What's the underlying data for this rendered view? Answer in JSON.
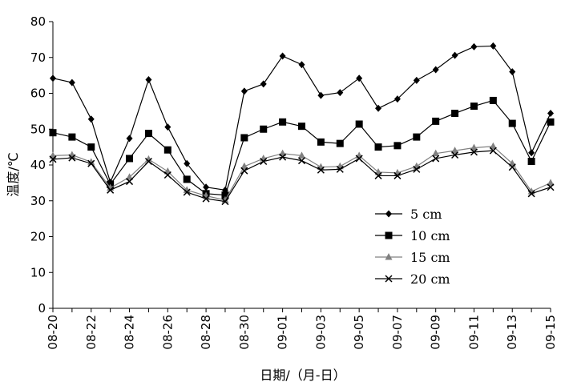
{
  "chart_data": {
    "type": "line",
    "title": "",
    "xlabel": "日期/（月-日）",
    "ylabel": "温度/℃",
    "ylim": [
      0,
      80
    ],
    "yticks": [
      0,
      10,
      20,
      30,
      40,
      50,
      60,
      70,
      80
    ],
    "grid": false,
    "legend_position": "bottom-right",
    "x": [
      "08-20",
      "08-21",
      "08-22",
      "08-23",
      "08-24",
      "08-25",
      "08-26",
      "08-27",
      "08-28",
      "08-29",
      "08-30",
      "08-31",
      "09-01",
      "09-02",
      "09-03",
      "09-04",
      "09-05",
      "09-06",
      "09-07",
      "09-08",
      "09-09",
      "09-10",
      "09-11",
      "09-12",
      "09-13",
      "09-14",
      "09-15"
    ],
    "xtick_labels": [
      "08-20",
      "08-22",
      "08-24",
      "08-26",
      "08-28",
      "08-30",
      "09-01",
      "09-03",
      "09-05",
      "09-07",
      "09-09",
      "09-11",
      "09-13",
      "09-15"
    ],
    "series": [
      {
        "name": "5 cm",
        "marker": "diamond",
        "color": "#000000",
        "values": [
          64.2,
          63.0,
          52.8,
          35.2,
          47.4,
          63.8,
          50.6,
          40.4,
          33.8,
          33.0,
          60.6,
          62.6,
          70.4,
          68.0,
          59.4,
          60.2,
          64.2,
          55.8,
          58.4,
          63.6,
          66.6,
          70.6,
          73.0,
          73.2,
          66.0,
          43.4,
          54.4
        ]
      },
      {
        "name": "10 cm",
        "marker": "square",
        "color": "#000000",
        "values": [
          49.0,
          47.8,
          45.0,
          34.6,
          41.8,
          48.8,
          44.2,
          36.0,
          32.0,
          31.6,
          47.6,
          50.0,
          52.0,
          50.8,
          46.4,
          46.0,
          51.4,
          45.0,
          45.4,
          47.8,
          52.2,
          54.4,
          56.4,
          58.0,
          51.6,
          41.0,
          52.0
        ]
      },
      {
        "name": "15 cm",
        "marker": "triangle",
        "color": "#808080",
        "values": [
          42.6,
          42.8,
          40.8,
          33.6,
          36.6,
          41.6,
          38.2,
          33.0,
          31.4,
          30.2,
          39.6,
          41.8,
          43.2,
          42.6,
          39.4,
          39.6,
          42.6,
          38.0,
          37.8,
          39.6,
          43.2,
          44.0,
          44.8,
          45.2,
          40.4,
          32.6,
          35.0
        ]
      },
      {
        "name": "20 cm",
        "marker": "x",
        "color": "#000000",
        "values": [
          41.6,
          42.0,
          40.4,
          33.0,
          35.4,
          41.0,
          37.2,
          32.4,
          30.6,
          29.8,
          38.4,
          41.0,
          42.2,
          41.2,
          38.6,
          38.8,
          41.8,
          37.0,
          37.0,
          38.8,
          41.8,
          42.8,
          43.6,
          44.0,
          39.4,
          32.0,
          33.8
        ]
      }
    ]
  }
}
